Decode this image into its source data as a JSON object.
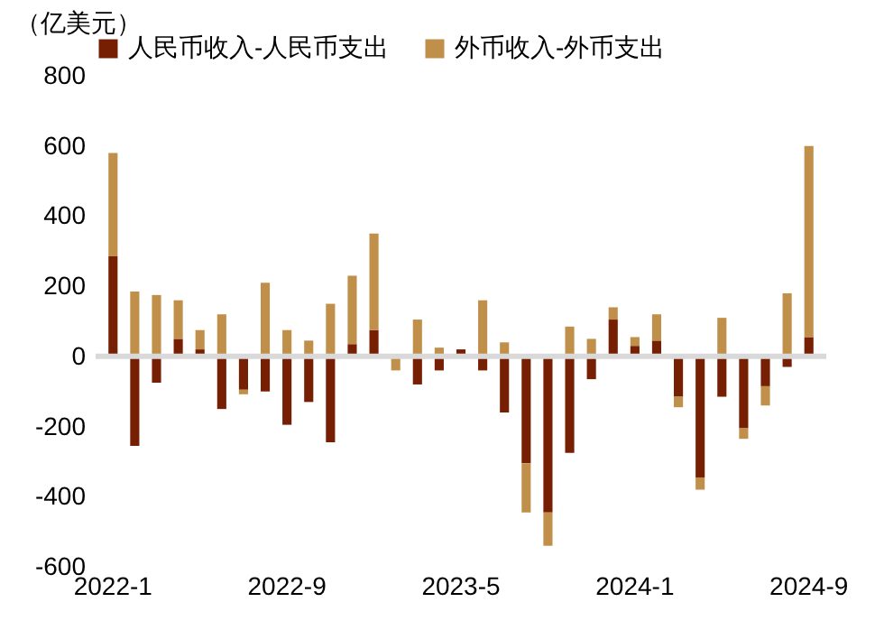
{
  "chart_data": {
    "type": "bar",
    "stacked": true,
    "ylabel": "（亿美元）",
    "categories": [
      "2022-1",
      null,
      null,
      null,
      null,
      null,
      null,
      null,
      "2022-9",
      null,
      null,
      null,
      null,
      null,
      null,
      null,
      "2023-5",
      null,
      null,
      null,
      null,
      null,
      null,
      null,
      "2024-1",
      null,
      null,
      null,
      null,
      null,
      null,
      null,
      "2024-9"
    ],
    "series": [
      {
        "name": "人民币收入-人民币支出",
        "color": "#761f02",
        "values": [
          285,
          -255,
          -75,
          50,
          20,
          -150,
          -95,
          -100,
          -195,
          -130,
          -245,
          35,
          75,
          0,
          -80,
          -40,
          20,
          -40,
          -160,
          -305,
          -445,
          -275,
          -65,
          105,
          30,
          45,
          -115,
          -345,
          -115,
          -205,
          -85,
          -30,
          55
        ]
      },
      {
        "name": "外币收入-外币支出",
        "color": "#c08f4a",
        "values": [
          295,
          185,
          175,
          110,
          55,
          120,
          -13,
          210,
          75,
          45,
          150,
          195,
          275,
          -40,
          105,
          25,
          0,
          160,
          40,
          -140,
          -95,
          85,
          50,
          35,
          25,
          75,
          -30,
          -35,
          110,
          -30,
          -55,
          180,
          545
        ]
      }
    ],
    "ylim": [
      -600,
      800
    ],
    "yticks": [
      -600,
      -400,
      -200,
      0,
      200,
      400,
      600,
      800
    ],
    "legend": "top"
  }
}
